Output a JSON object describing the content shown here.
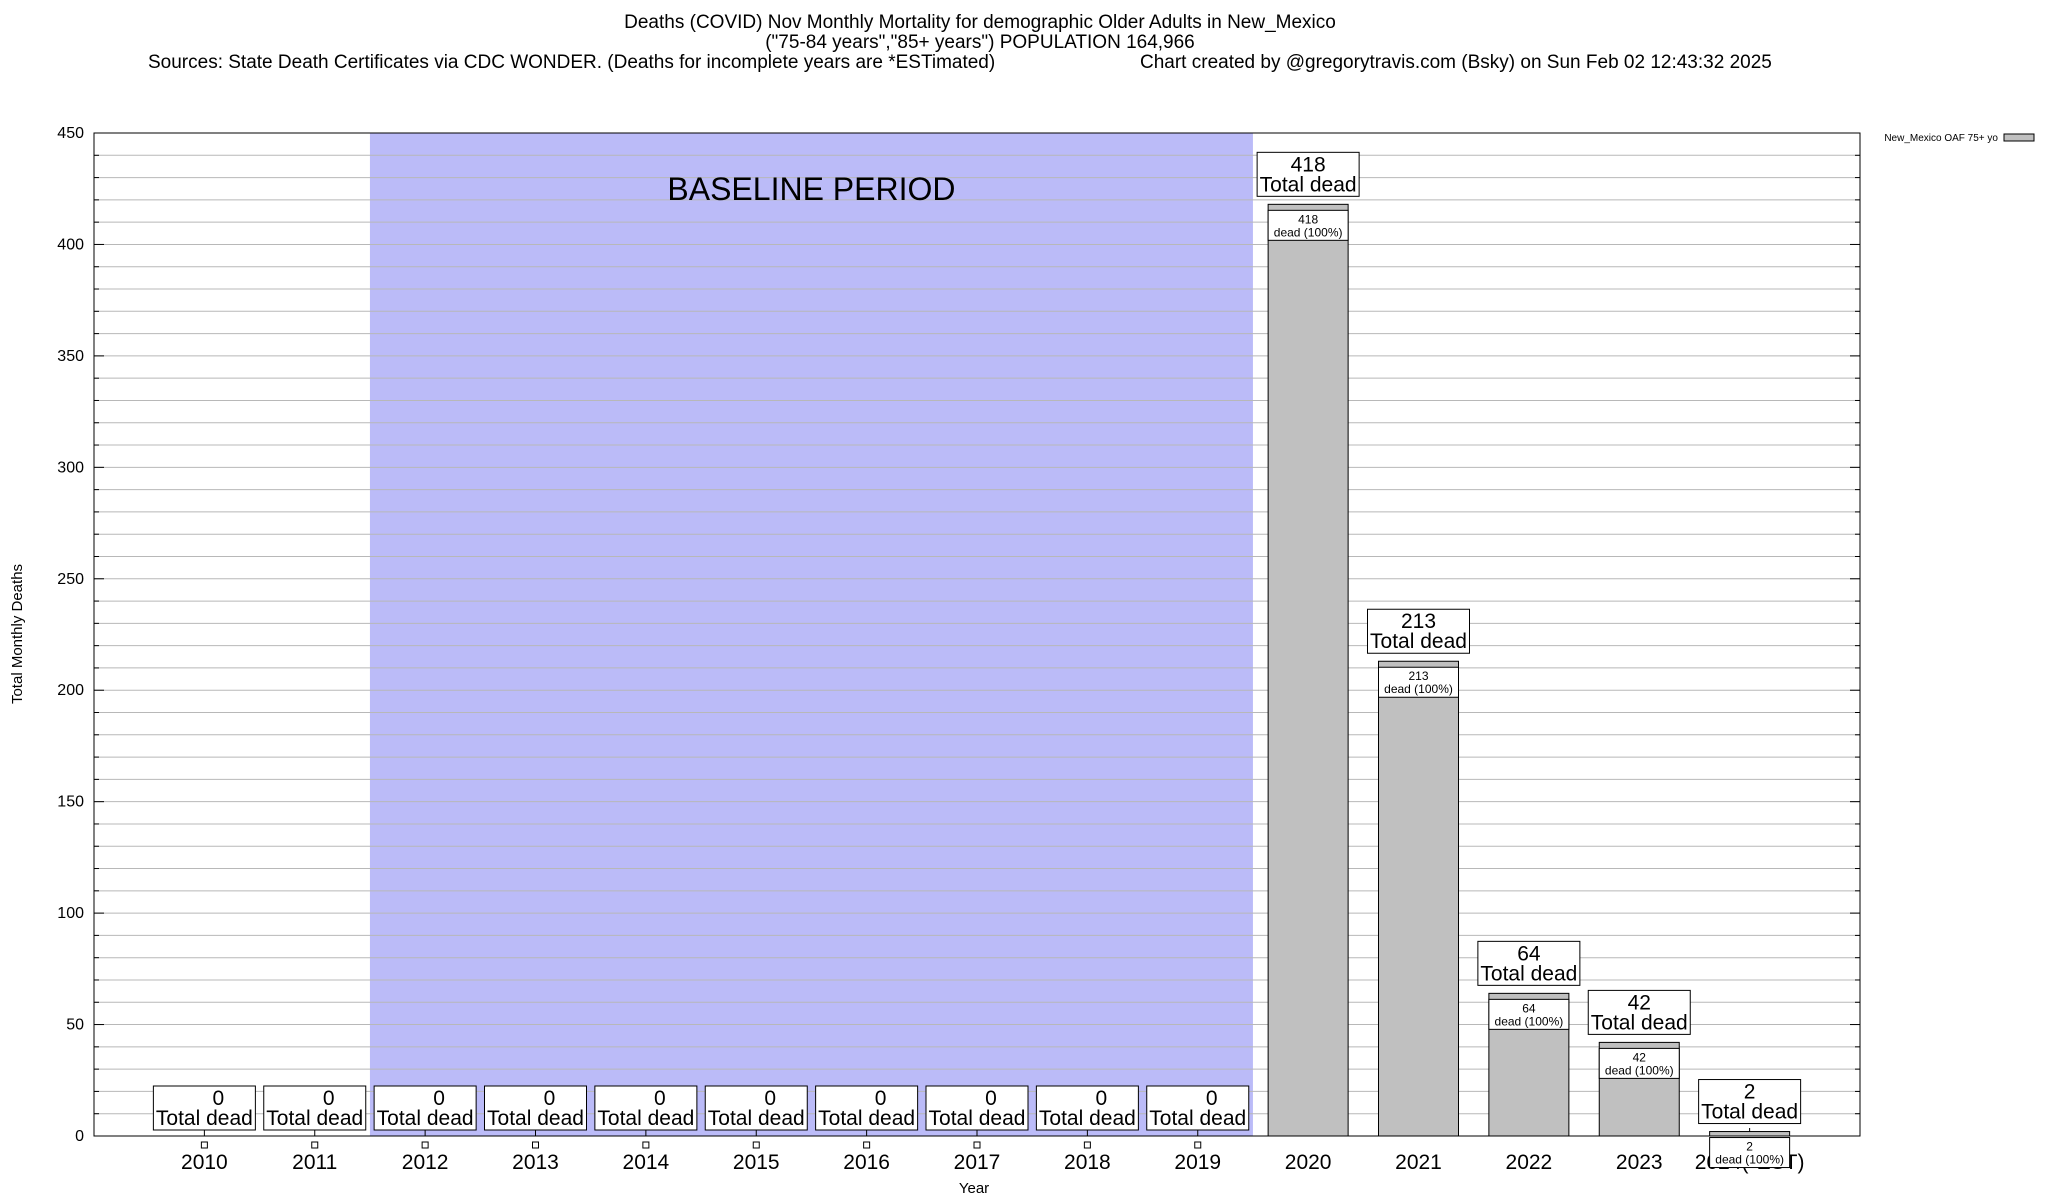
{
  "header": {
    "title": "Deaths (COVID) Nov Monthly Mortality for demographic Older Adults in New_Mexico",
    "subtitle": "(\"75-84 years\",\"85+ years\") POPULATION 164,966",
    "sources": "Sources: State Death Certificates via CDC WONDER. (Deaths for incomplete years are *ESTimated)",
    "credit": "Chart created by @gregorytravis.com (Bsky) on Sun Feb 02 12:43:32 2025"
  },
  "chart_data": {
    "type": "bar",
    "categories": [
      "2010",
      "2011",
      "2012",
      "2013",
      "2014",
      "2015",
      "2016",
      "2017",
      "2018",
      "2019",
      "2020",
      "2021",
      "2022",
      "2023",
      "2024(*EST)"
    ],
    "series": [
      {
        "name": "New_Mexico OAF 75+ yo",
        "values": [
          0,
          0,
          0,
          0,
          0,
          0,
          0,
          0,
          0,
          0,
          418,
          213,
          64,
          42,
          2
        ]
      }
    ],
    "total_label": "Total dead",
    "share_label": "dead (100%)",
    "xlabel": "Year",
    "ylabel": "Total Monthly Deaths",
    "ylim": [
      0,
      450
    ],
    "yticks": [
      0,
      50,
      100,
      150,
      200,
      250,
      300,
      350,
      400,
      450
    ],
    "y_minor_step": 10,
    "grid": true,
    "legend_position": "top-right",
    "baseline_period": {
      "label": "BASELINE PERIOD",
      "from": "2012",
      "to": "2019"
    },
    "colors": {
      "bar": "#c0c0c0",
      "baseline_band": "#bbbbf8",
      "grid": "#b8b8b8"
    }
  }
}
